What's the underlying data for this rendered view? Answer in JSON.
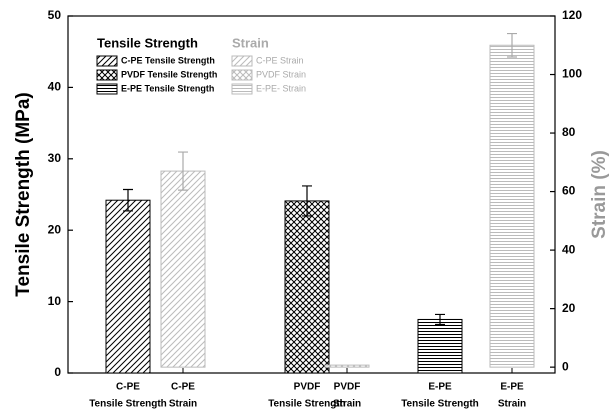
{
  "chart_data": {
    "type": "bar",
    "y_label": "Tensile Strength (MPa)",
    "y2_label": "Strain (%)",
    "categories": [
      [
        "C-PE",
        "Tensile Strength"
      ],
      [
        "C-PE",
        "Strain"
      ],
      [
        "PVDF",
        "Tensile Strength"
      ],
      [
        "PVDF",
        "Strain"
      ],
      [
        "E-PE",
        "Tensile Strength"
      ],
      [
        "E-PE",
        "Strain"
      ]
    ],
    "legend_titles": [
      "Tensile Strength",
      "Strain"
    ],
    "series": [
      {
        "name": "C-PE Tensile Strength",
        "color": "#000000",
        "pattern": "diagonal",
        "values": [
          24.2,
          null,
          null,
          null,
          null,
          null
        ],
        "errors": [
          1.5,
          null,
          null,
          null,
          null,
          null
        ]
      },
      {
        "name": "PVDF Tensile Strength",
        "color": "#000000",
        "pattern": "cross",
        "values": [
          null,
          null,
          24.1,
          null,
          null,
          null
        ],
        "errors": [
          null,
          null,
          2.1,
          null,
          null,
          null
        ]
      },
      {
        "name": "E-PE Tensile Strength",
        "color": "#000000",
        "pattern": "horizontal",
        "values": [
          null,
          null,
          null,
          null,
          7.5,
          null
        ],
        "errors": [
          null,
          null,
          null,
          null,
          0.7,
          null
        ]
      },
      {
        "name": "C-PE Strain",
        "color": "#bbbbbb",
        "pattern": "diagonal",
        "axis": "y2",
        "values": [
          null,
          67,
          null,
          null,
          null,
          null
        ],
        "errors": [
          null,
          6.5,
          null,
          null,
          null,
          null
        ]
      },
      {
        "name": "PVDF Strain",
        "color": "#bbbbbb",
        "pattern": "cross",
        "axis": "y2",
        "values": [
          null,
          null,
          null,
          0.7,
          null,
          null
        ],
        "errors": [
          null,
          null,
          null,
          null,
          null,
          null
        ]
      },
      {
        "name": "E-PE- Strain",
        "color": "#bbbbbb",
        "pattern": "horizontal",
        "axis": "y2",
        "values": [
          null,
          null,
          null,
          null,
          null,
          110
        ],
        "errors": [
          null,
          null,
          null,
          null,
          null,
          4
        ]
      }
    ],
    "ylim": [
      0,
      50
    ],
    "yticks": [
      0,
      10,
      20,
      30,
      40,
      50
    ],
    "y2lim": [
      -2,
      120
    ],
    "y2ticks": [
      0,
      20,
      40,
      60,
      80,
      100,
      120
    ],
    "y2_color": "#999999"
  }
}
